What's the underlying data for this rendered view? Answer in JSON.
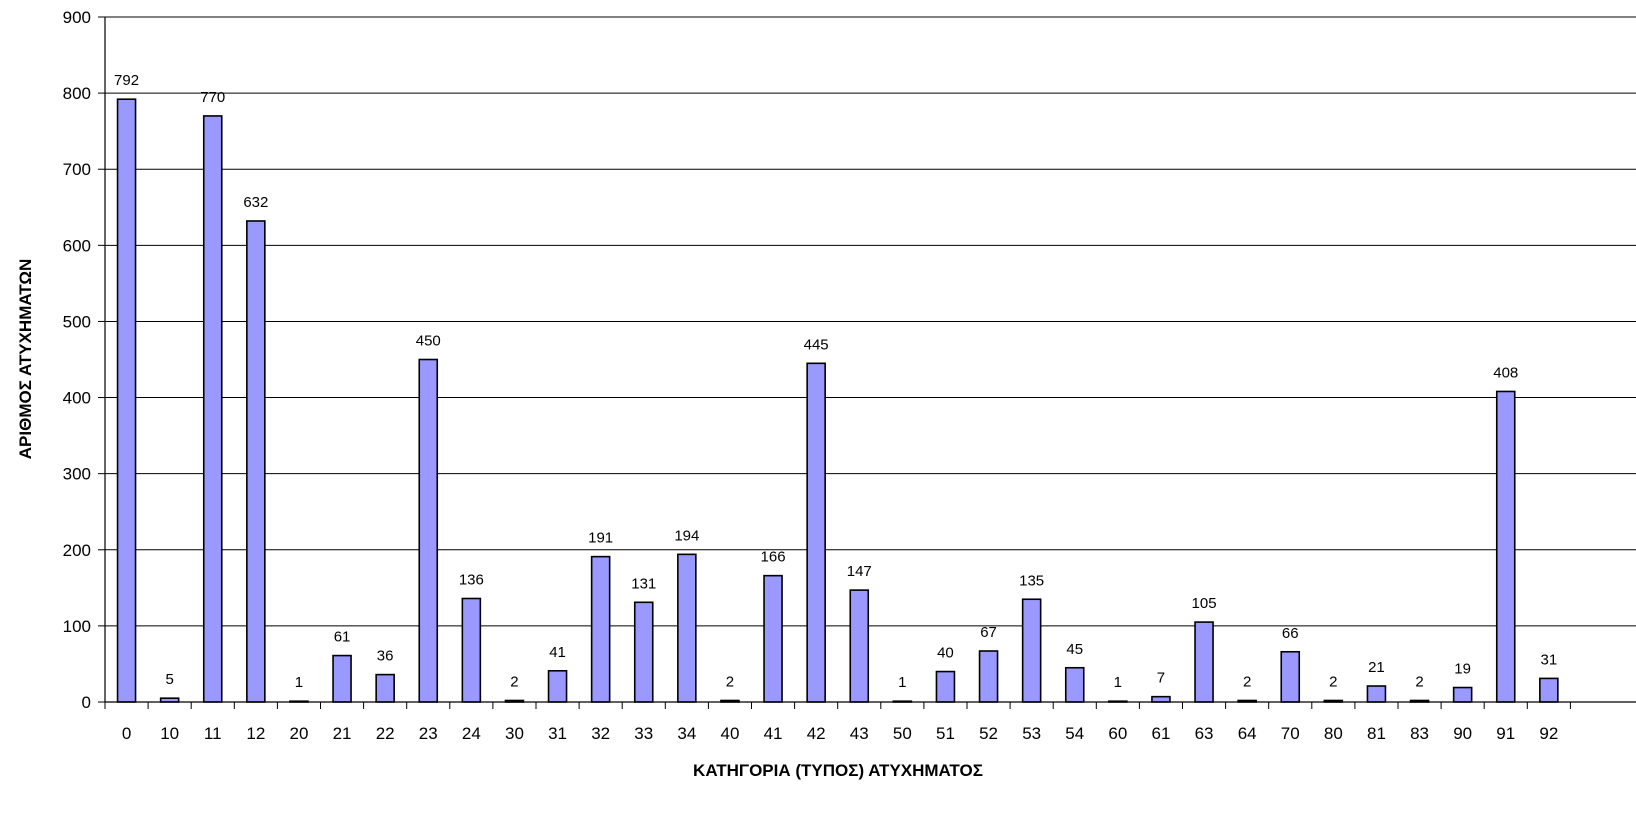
{
  "chart_data": {
    "type": "bar",
    "title": "",
    "xlabel": "ΚΑΤΗΓΟΡΙΑ (ΤΥΠΟΣ) ΑΤΥΧΗΜΑΤΟΣ",
    "ylabel": "ΑΡΙΘΜΟΣ ΑΤΥΧΗΜΑΤΩΝ",
    "ylim": [
      0,
      900
    ],
    "yticks": [
      0,
      100,
      200,
      300,
      400,
      500,
      600,
      700,
      800,
      900
    ],
    "grid": true,
    "legend": "none",
    "categories": [
      "0",
      "10",
      "11",
      "12",
      "20",
      "21",
      "22",
      "23",
      "24",
      "30",
      "31",
      "32",
      "33",
      "34",
      "40",
      "41",
      "42",
      "43",
      "50",
      "51",
      "52",
      "53",
      "54",
      "60",
      "61",
      "63",
      "64",
      "70",
      "80",
      "81",
      "83",
      "90",
      "91",
      "92"
    ],
    "values": [
      792,
      5,
      770,
      632,
      1,
      61,
      36,
      450,
      136,
      2,
      41,
      191,
      131,
      194,
      2,
      166,
      445,
      147,
      1,
      40,
      67,
      135,
      45,
      1,
      7,
      105,
      2,
      66,
      2,
      21,
      2,
      19,
      408,
      31
    ],
    "colors": {
      "bar_fill": "#9999ff",
      "bar_stroke": "#000000",
      "grid": "#000000",
      "axis": "#000000"
    }
  }
}
